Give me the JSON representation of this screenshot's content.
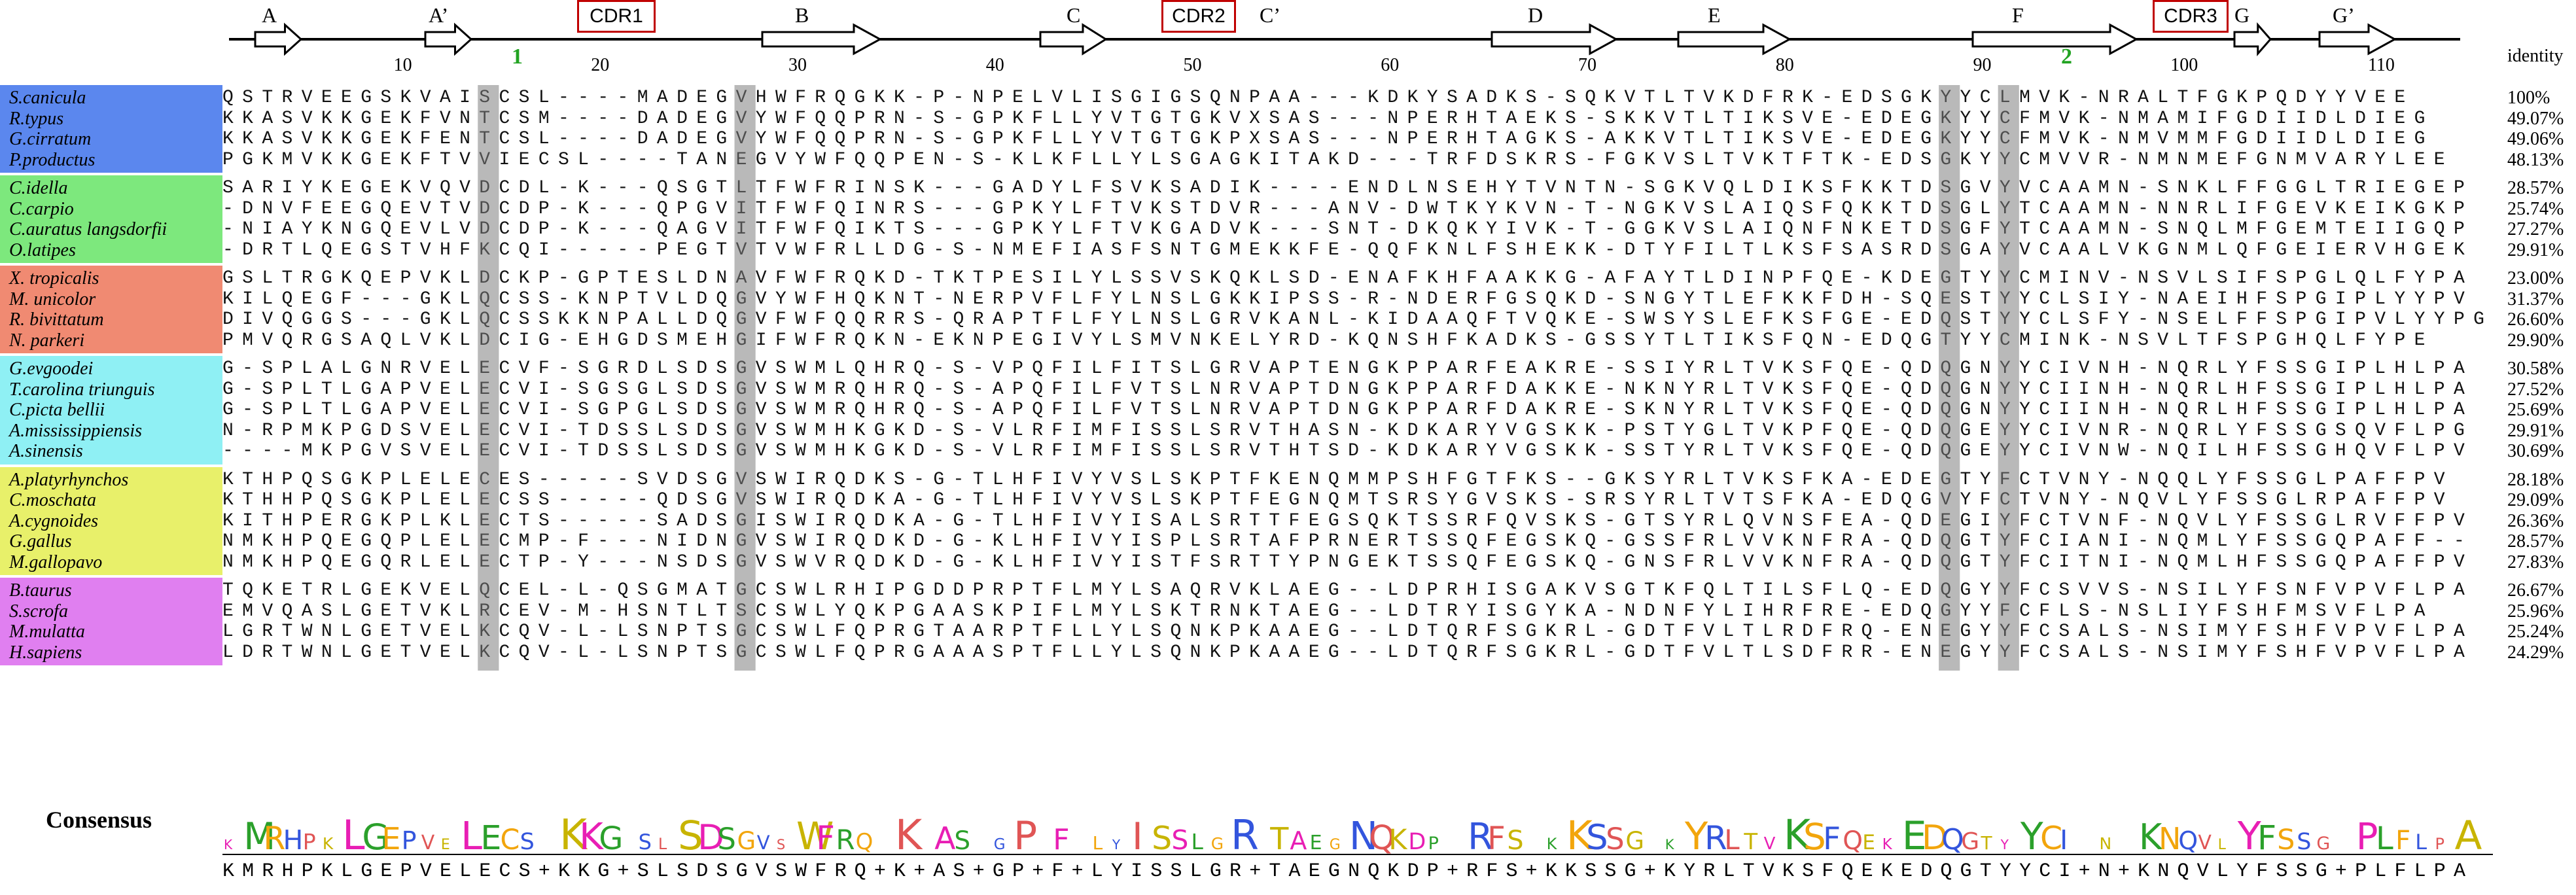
{
  "strands": [
    {
      "label": "A"
    },
    {
      "label": "A’"
    },
    {
      "label": "B"
    },
    {
      "label": "C"
    },
    {
      "label": "C’"
    },
    {
      "label": "D"
    },
    {
      "label": "E"
    },
    {
      "label": "F"
    },
    {
      "label": "G"
    },
    {
      "label": "G’"
    }
  ],
  "cdrs": [
    "CDR1",
    "CDR2",
    "CDR3"
  ],
  "ruler": [
    "10",
    "20",
    "30",
    "40",
    "50",
    "60",
    "70",
    "80",
    "90",
    "100",
    "110"
  ],
  "markers": [
    "1",
    "2"
  ],
  "identity_header": "identity",
  "groups": [
    {
      "color": "#5b87ee",
      "rows": [
        {
          "species": "S.canicula",
          "seq": "QSTRVEEGSKVAISCSL----MADEGVHWFRQGKK-P-NPELVLISGIGSQNPAA---KDKYSADKS-SQKVTLTVKDFRK-EDSGKYYCLMVK-NRALTFGKPQDYYVEE",
          "identity": "100%"
        },
        {
          "species": "R.typus",
          "seq": "KKASVKKGEKFVNTCSM----DADEGVYWFQQPRN-S-GPKFLLYVTGTGKVXSAS---NPERHTAEKS-SKKVTLTIKSVE-EDEGKYYCFMVK-NMAMIFGDIIDLDIEG",
          "identity": "49.07%"
        },
        {
          "species": "G.cirratum",
          "seq": "KKASVKKGEKFENTCSL----DADEGVYWFQQPRN-S-GPKFLLYVTGTGKPXSAS---NPERHTAGKS-AKKVTLTIKSVE-EDEGKYYCFMVK-NMVMMFGDIIDLDIEG",
          "identity": "49.06%"
        },
        {
          "species": "P.productus",
          "seq": "PGKMVKKGEKFTVVIECSL----TANEGVYWFQQPEN-S-KLKFLLYLSGAGKITAKD---TRFDSKRS-FGKVSLTVKTFTK-EDSGKYYCMVVR-NMNMEFGNMVARYLEE",
          "identity": "48.13%"
        }
      ]
    },
    {
      "color": "#7de87d",
      "rows": [
        {
          "species": "C.idella",
          "seq": "SARIYKEGEKVQVDCDL-K---QSGTLTFWFRINSK---GADYLFSVKSADIK----ENDLNSEHYTVNTN-SGKVQLDIKSFKKTDSGVYVCAAMN-SNKLFFGGLTRIEGEP",
          "identity": "28.57%"
        },
        {
          "species": "C.carpio",
          "seq": "-DNVFEEGQEVTVDCDP-K---QPGVITFWFQINRS---GPKYLFTVKSTDVR---ANV-DWTKYKVN-T-NGKVSLAIQSFQKKTDSGLYTCAAMN-NNRLIFGEVKEIKGKP",
          "identity": "25.74%"
        },
        {
          "species": "C.auratus langsdorfii",
          "seq": "-NIAYKNGQEVLVDCDP-K---QAGVITFWFQIKTS---GPKYLFTVKGADVK---SNT-DKQKYIVK-T-GGKVSLAIQNFNKETDSGFYTCAAMN-SNQLMFGEMTEIIGQP",
          "identity": "27.27%"
        },
        {
          "species": "O.latipes",
          "seq": "-DRTLQEGSTVHFKCQI-----PEGTVTVWFRLLDG-S-NMEFIASFSNTGMEKKFE-QQFKNLFSHEKK-DTYFILTLKSFSASRDSGAYVCAALVKGNMLQFGEIERVHGEK",
          "identity": "29.91%"
        }
      ]
    },
    {
      "color": "#f08a72",
      "rows": [
        {
          "species": "X. tropicalis",
          "seq": "GSLTRGKQEPVKLDCKP-GPTESLDNAVFWFRQKD-TKTPESILYLSSVSKQKLSD-ENAFKHFAAKKG-AFAYTLDINPFQE-KDEGTYYCMINV-NSVLSIFSPGLQLFYPA",
          "identity": "23.00%"
        },
        {
          "species": "M. unicolor",
          "seq": "KILQEGF---GKLQCSS-KNPTVLDQGVYWFHQKNT-NERPVFLFYLNSLGKKIPSS-R-NDERFGSQKD-SNGYTLEFKKFDH-SQESTYYCLSIY-NAEIHFSPGIPLYYPV",
          "identity": "31.37%"
        },
        {
          "species": "R. bivittatum",
          "seq": "DIVQGGS---GKLQCSSKKNPALLDQGVFWFQQRRS-QRAPTFLFYLNSLGRVKANL-KIDAAQFTVQKE-SWSYSLEFKSFGE-EDQSTYYCLSFY-NSELFFSPGIPVLYYPG",
          "identity": "26.60%"
        },
        {
          "species": "N. parkeri",
          "seq": "PMVQRGSAQLVKLDCIG-EHGDSMEHGIFWFRQKN-EKNPEGIVYLSMVNKELYRD-KQNSHFKADKS-GSSYTLTIKSFQN-EDQGTYYCMINK-NSVLTFSPGHQLFYPE",
          "identity": "29.90%"
        }
      ]
    },
    {
      "color": "#8ff0f4",
      "rows": [
        {
          "species": "G.evgoodei",
          "seq": "G-SPLALGNRVELECVF-SGRDLSDSGVSWMLQHRQ-S-VPQFILFITSLGRVAPTENGKPPARFEAKRE-SSIYRLTVKSFQE-QDQGNYYCIVNH-NQRLYFSSGIPLHLPA",
          "identity": "30.58%"
        },
        {
          "species": "T.carolina triunguis",
          "seq": "G-SPLTLGAPVELECVI-SGSGLSDSGVSWMRQHRQ-S-APQFILFVTSLNRVAPTDNGKPPARFDAKKE-NKNYRLTVKSFQE-QDQGNYYCIINH-NQRLHFSSGIPLHLPA",
          "identity": "27.52%"
        },
        {
          "species": "C.picta bellii",
          "seq": "G-SPLTLGAPVELECVI-SGPGLSDSGVSWMRQHRQ-S-APQFILFVTSLNRVAPTDNGKPPARFDAKRE-SKNYRLTVKSFQE-QDQGNYYCIINH-NQRLHFSSGIPLHLPA",
          "identity": "25.69%"
        },
        {
          "species": "A.mississippiensis",
          "seq": "N-RPMKPGDSVELECVI-TDSSLSDSGVSWMHKGKD-S-VLRFIMFISSLSRVTHASN-KDKARYVGSKK-PSTYGLTVKPFQE-QDQGEYYCIVNR-NQRLYFSSGSQVFLPG",
          "identity": "29.91%"
        },
        {
          "species": "A.sinensis",
          "seq": "----MKPGVSVELECVI-TDSSLSDSGVSWMHKGKD-S-VLRFIMFISSLSRVTHTSD-KDKARYVGSKK-SSTYRLTVKSFQE-QDQGEYYCIVNW-NQILHFSSGHQVFLPV",
          "identity": "30.69%"
        }
      ]
    },
    {
      "color": "#e8f06a",
      "rows": [
        {
          "species": "A.platyrhynchos",
          "seq": "KTHPQSGKPLELECES-----SVDSGVSWIRQDKS-G-TLHFIVYVSLSKPTFKENQMMPSHFGTFKS--GKSYRLTVKSFKA-EDEGTYFCTVNY-NQQLYFSSGLPAFFPV",
          "identity": "28.18%"
        },
        {
          "species": "C.moschata",
          "seq": "KTHHPQSGKPLELECSS-----QDSGVSWIRQDKA-G-TLHFIVYVSLSKPTFEGNQMTSRSYGVSKS-SRSYRLTVTSFKA-EDQGVYFCTVNY-NQVLYFSSGLRPAFFPV",
          "identity": "29.09%"
        },
        {
          "species": "A.cygnoides",
          "seq": "KITHPERGKPLKLECTS-----SADSGISWIRQDKA-G-TLHFIVYISALSRTTFEGSQKTSSRFQVSKS-GTSYRLQVNSFEA-QDEGIYFCTVNF-NQVLYFSSGLRVFFPV",
          "identity": "26.36%"
        },
        {
          "species": "G.gallus",
          "seq": "NMKHPQEGQPLELECMP-F---NIDNGVSWIRQDKD-G-KLHFIVYISPLSRTAFPRNERTSSQFEGSKQ-GSSFRLVVKNFRA-QDQGTYFCIANI-NQMLYFSSGQPAFF--",
          "identity": "28.57%"
        },
        {
          "species": "M.gallopavo",
          "seq": "NMKHPQEGQRLELECTP-Y---NSDSGVSWVRQDKD-G-KLHFIVYISTFSRTTYPNGEKTSSQFEGSKQ-GNSFRLVVKNFRA-QDQGTYFCITNI-NQMLHFSSGQPAFFPV",
          "identity": "27.83%"
        }
      ]
    },
    {
      "color": "#e07ff0",
      "rows": [
        {
          "species": "B.taurus",
          "seq": "TQKETRLGEKVELQCEL-L-QSGMATGCSWLRHIPGDDPRPTFLMYLSAQRVKLAEG--LDPRHISGAKVSGTKFQLTILSFLQ-EDQGYYFCSVVS-NSILYFSNFVPVFLPA",
          "identity": "26.67%"
        },
        {
          "species": "S.scrofa",
          "seq": "EMVQASLGETVKLRCEV-M-HSNTLTSCSWLYQKPGAASKPIFLMYLSKTRNKTAEG--LDTRYISGYKA-NDNFYLIHRFRE-EDQGYYFCFLS-NSLIYFSHFMSVFLPA",
          "identity": "25.96%"
        },
        {
          "species": "M.mulatta",
          "seq": "LGRTWNLGETVELKCQV-L-LSNPTSGCSWLFQPRGTAARPTFLLYLSQNKPKAAEG--LDTQRFSGKRL-GDTFVLTLRDFRQ-ENEGYYFCSALS-NSIMYFSHFVPVFLPA",
          "identity": "25.24%"
        },
        {
          "species": "H.sapiens",
          "seq": "LDRTWNLGETVELKCQV-L-LSNPTSGCSWLFQPRGAAASPTFLLYLSQNKPKAAEG--LDTQRFSGKRL-GDTFVLTLSDFRR-ENEGYYFCSALS-NSIMYFSHFVPVFLPA",
          "identity": "24.29%"
        }
      ]
    }
  ],
  "consensus_label": "Consensus",
  "consensus_seq": "KMRHPKLGEPVELECS+KKG+SLSDSGVSWFRQ+K+AS+GP+F+LYISSLGR+TAEGNQKDP+RFS+KKSSG+KYRLTVKSFQEKEDQGTYYCI+N+KNQVLYFSSG+PLFLPA",
  "colors": {
    "cdr_box": "#c00000",
    "marker_green": "#22a322",
    "conserved_column": "#7f7f7f"
  }
}
